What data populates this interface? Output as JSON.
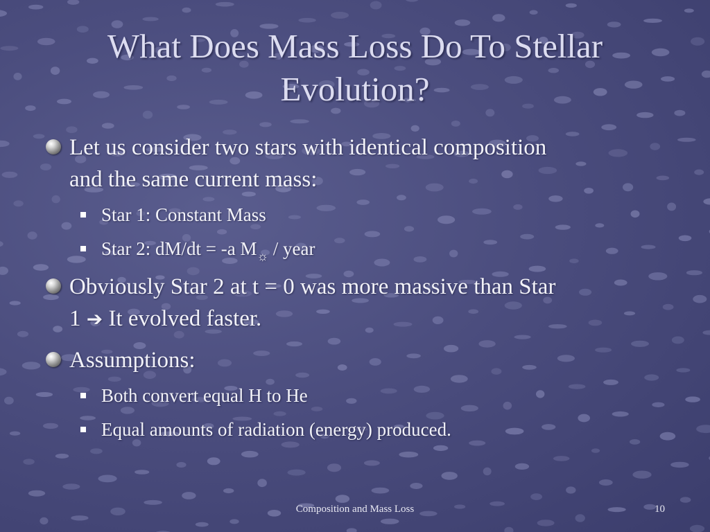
{
  "slide": {
    "title_line1": "What Does Mass Loss Do To Stellar",
    "title_line2": "Evolution?",
    "bullets": [
      {
        "line1": "Let us consider two stars with identical composition",
        "line2": "and the same current mass:"
      },
      {
        "text": "Star 1: Constant Mass"
      },
      {
        "prefix": "Star 2: dM/dt = -a M",
        "subscript": "☼",
        "suffix": " / year"
      },
      {
        "line1": "Obviously Star 2 at t = 0 was more massive than Star",
        "line2_prefix": "1 ",
        "arrow": "➔",
        "line2_suffix": " It evolved faster."
      },
      {
        "text": "Assumptions:"
      },
      {
        "text": "Both convert equal H to He"
      },
      {
        "text": "Equal amounts of radiation (energy) produced."
      }
    ]
  },
  "footer": {
    "center_text": "Composition and Mass Loss",
    "page_number": "10"
  },
  "colors": {
    "background": "#4b4d7e",
    "text": "#f2f2f8",
    "title": "#dcdcf0"
  }
}
